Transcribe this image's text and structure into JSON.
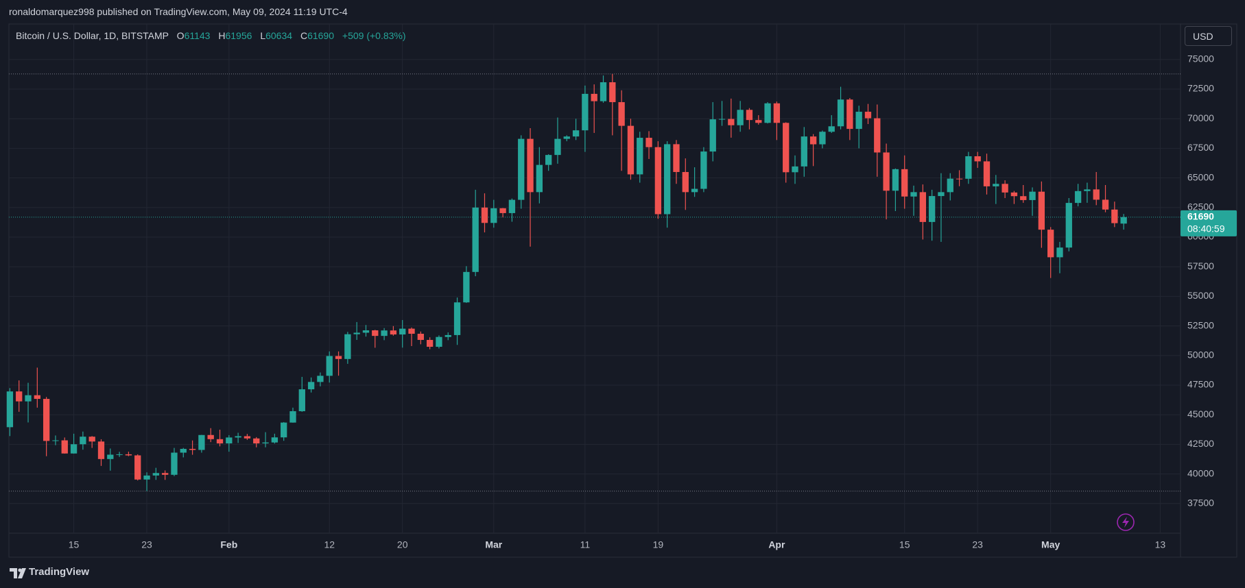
{
  "header": {
    "text": "ronaldomarquez998 published on TradingView.com, May 09, 2024 11:19 UTC-4"
  },
  "footer": {
    "brand": "TradingView"
  },
  "chart_data": {
    "type": "candlestick",
    "title": "Bitcoin / U.S. Dollar, 1D, BITSTAMP",
    "ohlc_labels": [
      "O",
      "H",
      "L",
      "C"
    ],
    "change_label": "+509 (+0.83%)",
    "currency": "USD",
    "countdown": "08:40:59",
    "up_color": "#26a69a",
    "down_color": "#ef5350",
    "grid": true,
    "x": [
      "01-08",
      "01-09",
      "01-10",
      "01-11",
      "01-12",
      "01-13",
      "01-14",
      "01-15",
      "01-16",
      "01-17",
      "01-18",
      "01-19",
      "01-20",
      "01-21",
      "01-22",
      "01-23",
      "01-24",
      "01-25",
      "01-26",
      "01-27",
      "01-28",
      "01-29",
      "01-30",
      "01-31",
      "02-01",
      "02-02",
      "02-03",
      "02-04",
      "02-05",
      "02-06",
      "02-07",
      "02-08",
      "02-09",
      "02-10",
      "02-11",
      "02-12",
      "02-13",
      "02-14",
      "02-15",
      "02-16",
      "02-17",
      "02-18",
      "02-19",
      "02-20",
      "02-21",
      "02-22",
      "02-23",
      "02-24",
      "02-25",
      "02-26",
      "02-27",
      "02-28",
      "02-29",
      "03-01",
      "03-02",
      "03-03",
      "03-04",
      "03-05",
      "03-06",
      "03-07",
      "03-08",
      "03-09",
      "03-10",
      "03-11",
      "03-12",
      "03-13",
      "03-14",
      "03-15",
      "03-16",
      "03-17",
      "03-18",
      "03-19",
      "03-20",
      "03-21",
      "03-22",
      "03-23",
      "03-24",
      "03-25",
      "03-26",
      "03-27",
      "03-28",
      "03-29",
      "03-30",
      "03-31",
      "04-01",
      "04-02",
      "04-03",
      "04-04",
      "04-05",
      "04-06",
      "04-07",
      "04-08",
      "04-09",
      "04-10",
      "04-11",
      "04-12",
      "04-13",
      "04-14",
      "04-15",
      "04-16",
      "04-17",
      "04-18",
      "04-19",
      "04-20",
      "04-21",
      "04-22",
      "04-23",
      "04-24",
      "04-25",
      "04-26",
      "04-27",
      "04-28",
      "04-29",
      "04-30",
      "05-01",
      "05-02",
      "05-03",
      "05-04",
      "05-05",
      "05-06",
      "05-07",
      "05-08",
      "05-09"
    ],
    "open": [
      43950,
      46970,
      46130,
      46650,
      46340,
      42790,
      42840,
      41730,
      42510,
      43150,
      42740,
      41260,
      41630,
      41660,
      41570,
      39530,
      39870,
      40080,
      39930,
      41800,
      42120,
      42030,
      43290,
      42940,
      42580,
      43080,
      43190,
      43000,
      42580,
      42660,
      43090,
      44340,
      45300,
      47150,
      47770,
      48290,
      49960,
      49710,
      51800,
      51930,
      52130,
      51660,
      52120,
      51780,
      52270,
      51840,
      51320,
      50740,
      51570,
      51730,
      54490,
      57060,
      62500,
      61200,
      62440,
      62030,
      63150,
      68300,
      63800,
      66100,
      66940,
      68300,
      68500,
      69020,
      72100,
      71480,
      73080,
      71400,
      69400,
      65300,
      68390,
      67600,
      61940,
      67850,
      65500,
      63800,
      64080,
      67230,
      69950,
      69980,
      69450,
      70750,
      69890,
      69650,
      71300,
      69650,
      65480,
      65970,
      68500,
      67840,
      68900,
      69360,
      71620,
      69140,
      70590,
      70040,
      67150,
      63920,
      65740,
      63430,
      63800,
      61280,
      63470,
      63800,
      64940,
      64930,
      66830,
      66400,
      64290,
      64500,
      63770,
      63460,
      63130,
      63840,
      60630,
      58300,
      59120,
      62890,
      63890,
      64030,
      63160,
      62330,
      61143
    ],
    "high": [
      47250,
      47900,
      47700,
      48980,
      46500,
      43250,
      43080,
      43400,
      43580,
      43200,
      42930,
      42150,
      41870,
      41880,
      41660,
      40140,
      40520,
      40300,
      42200,
      42200,
      42830,
      43300,
      43870,
      43740,
      43280,
      43480,
      43380,
      43110,
      43530,
      43400,
      44380,
      45600,
      48200,
      48150,
      48570,
      50350,
      50350,
      52000,
      52830,
      52580,
      52170,
      52320,
      52490,
      53000,
      52370,
      52030,
      51540,
      51700,
      51960,
      54900,
      57550,
      64000,
      63700,
      63150,
      62460,
      63260,
      68600,
      69200,
      67600,
      67000,
      70100,
      68600,
      70000,
      72800,
      72900,
      73650,
      73780,
      72400,
      70000,
      68900,
      68950,
      68100,
      68100,
      68200,
      66650,
      65900,
      67600,
      71400,
      71500,
      71700,
      71500,
      70900,
      70300,
      71400,
      71450,
      69700,
      66900,
      69300,
      68700,
      69000,
      70300,
      72700,
      71750,
      71100,
      71250,
      71200,
      67900,
      65800,
      66900,
      64350,
      64450,
      64000,
      65400,
      65400,
      65650,
      67200,
      67200,
      67050,
      65250,
      64800,
      63900,
      64400,
      64200,
      64700,
      60850,
      59600,
      63300,
      64500,
      64600,
      65500,
      64400,
      63000,
      61956
    ],
    "low": [
      43200,
      45250,
      44350,
      45600,
      41500,
      42430,
      41720,
      41720,
      42050,
      42200,
      40680,
      40280,
      41440,
      41500,
      39450,
      38550,
      39500,
      39500,
      39820,
      41400,
      41620,
      41800,
      42690,
      42330,
      41880,
      42620,
      42880,
      42250,
      42250,
      42570,
      42800,
      44330,
      45250,
      46880,
      47400,
      47720,
      48300,
      49300,
      51320,
      51600,
      50660,
      51300,
      51680,
      50670,
      50800,
      50950,
      50530,
      50600,
      51300,
      50900,
      54450,
      56700,
      60400,
      60800,
      61670,
      61300,
      62400,
      59200,
      62850,
      65600,
      66200,
      68100,
      68200,
      67200,
      68800,
      71350,
      68600,
      65600,
      64850,
      64600,
      66600,
      61550,
      60800,
      64500,
      62300,
      63400,
      63800,
      66400,
      69400,
      68400,
      68900,
      69100,
      69500,
      69600,
      68200,
      64600,
      64500,
      65100,
      66000,
      67500,
      68800,
      69100,
      68200,
      67500,
      69550,
      65100,
      61500,
      62200,
      62400,
      61800,
      59800,
      59700,
      59600,
      63100,
      64300,
      64500,
      65850,
      63600,
      62800,
      63300,
      62800,
      62900,
      61800,
      59100,
      56550,
      56950,
      58800,
      62600,
      62900,
      62700,
      62100,
      60850,
      60634
    ],
    "close": [
      46970,
      46130,
      46650,
      46340,
      42790,
      42840,
      41730,
      42510,
      43150,
      42740,
      41260,
      41630,
      41660,
      41570,
      39530,
      39870,
      40080,
      39930,
      41800,
      42120,
      42030,
      43290,
      42940,
      42580,
      43080,
      43190,
      43000,
      42580,
      42660,
      43090,
      44340,
      45300,
      47150,
      47770,
      48290,
      49960,
      49710,
      51800,
      51930,
      52130,
      51660,
      52120,
      51780,
      52270,
      51840,
      51320,
      50740,
      51570,
      51730,
      54490,
      57060,
      62500,
      61200,
      62440,
      62030,
      63150,
      68300,
      63800,
      66100,
      66940,
      68300,
      68500,
      69020,
      72100,
      71480,
      73080,
      71400,
      69400,
      65300,
      68390,
      67600,
      61940,
      67850,
      65500,
      63800,
      64080,
      67230,
      69950,
      69980,
      69450,
      70750,
      69890,
      69650,
      71300,
      69650,
      65480,
      65970,
      68500,
      67840,
      68900,
      69360,
      71620,
      69140,
      70590,
      70040,
      67150,
      63920,
      65740,
      63430,
      63800,
      61280,
      63470,
      63800,
      64940,
      64930,
      66830,
      66400,
      64290,
      64500,
      63770,
      63460,
      63130,
      63840,
      60630,
      58300,
      59120,
      62890,
      63890,
      64030,
      63160,
      62330,
      61180,
      61690
    ],
    "xlim": [
      "01-08",
      "05-15"
    ],
    "xticks": [
      {
        "value": "01-15",
        "label": "15"
      },
      {
        "value": "01-23",
        "label": "23"
      },
      {
        "value": "02-01",
        "label": "Feb"
      },
      {
        "value": "02-12",
        "label": "12"
      },
      {
        "value": "02-20",
        "label": "20"
      },
      {
        "value": "03-01",
        "label": "Mar"
      },
      {
        "value": "03-11",
        "label": "11"
      },
      {
        "value": "03-19",
        "label": "19"
      },
      {
        "value": "04-01",
        "label": "Apr"
      },
      {
        "value": "04-15",
        "label": "15"
      },
      {
        "value": "04-23",
        "label": "23"
      },
      {
        "value": "05-01",
        "label": "May"
      },
      {
        "value": "05-13",
        "label": "13"
      }
    ],
    "ylim": [
      35000,
      78000
    ],
    "yticks": [
      37500,
      40000,
      42500,
      45000,
      47500,
      50000,
      52500,
      55000,
      57500,
      60000,
      62500,
      65000,
      67500,
      70000,
      72500,
      75000
    ]
  }
}
